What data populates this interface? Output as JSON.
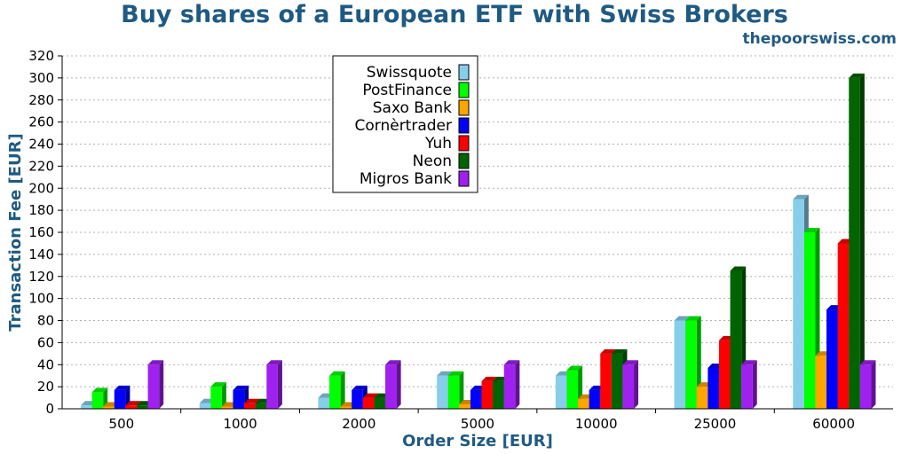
{
  "chart_data": {
    "type": "bar",
    "title": "Buy shares of a European ETF with Swiss Brokers",
    "subtitle": "thepoorswiss.com",
    "xlabel": "Order Size [EUR]",
    "ylabel": "Transaction Fee [EUR]",
    "ylim": [
      0,
      320
    ],
    "yticks": [
      0,
      20,
      40,
      60,
      80,
      100,
      120,
      140,
      160,
      180,
      200,
      220,
      240,
      260,
      280,
      300,
      320
    ],
    "grid": true,
    "legend_position": "top-center",
    "categories": [
      "500",
      "1000",
      "2000",
      "5000",
      "10000",
      "25000",
      "60000"
    ],
    "series": [
      {
        "name": "Swissquote",
        "color": "#87ceeb",
        "values": [
          3,
          5,
          10,
          30,
          30,
          80,
          190
        ]
      },
      {
        "name": "PostFinance",
        "color": "#00ff00",
        "values": [
          15,
          20,
          30,
          30,
          35,
          80,
          160
        ]
      },
      {
        "name": "Saxo Bank",
        "color": "#ffa500",
        "values": [
          2,
          2,
          2,
          4,
          9,
          20,
          48
        ]
      },
      {
        "name": "Cornèrtrader",
        "color": "#0000ff",
        "values": [
          17,
          17,
          17,
          17,
          17,
          37,
          90
        ]
      },
      {
        "name": "Yuh",
        "color": "#ff0000",
        "values": [
          3,
          5,
          10,
          25,
          50,
          62,
          150
        ]
      },
      {
        "name": "Neon",
        "color": "#006400",
        "values": [
          3,
          5,
          10,
          25,
          50,
          125,
          300
        ]
      },
      {
        "name": "Migros Bank",
        "color": "#a020f0",
        "values": [
          40,
          40,
          40,
          40,
          40,
          40,
          40
        ]
      }
    ]
  }
}
